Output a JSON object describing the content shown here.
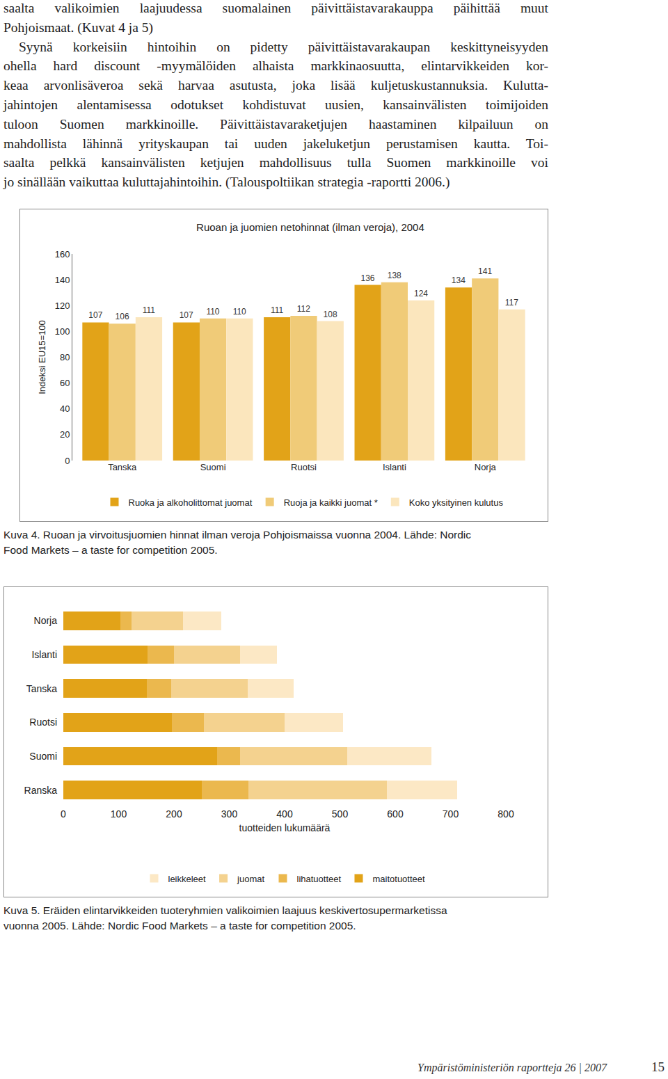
{
  "page": {
    "paragraphs": [
      [
        "saalta valikoimien laajuudessa suomalainen päivittäistavarakauppa päihittää muut",
        "Pohjoismaat. (Kuvat 4 ja 5)"
      ],
      [
        "Syynä korkeisiin hintoihin on pidetty päivittäistavarakaupan keskittyneisyyden",
        "ohella hard discount -myymälöiden alhaista markkinaosuutta, elintarvikkeiden kor-",
        "keaa arvonlisäveroa sekä harvaa asutusta, joka lisää kuljetuskustannuksia. Kulutta-",
        "jahintojen alentamisessa odotukset kohdistuvat uusien, kansainvälisten toimijoiden",
        "tuloon Suomen markkinoille. Päivittäistavaraketjujen haastaminen kilpailuun on",
        "mahdollista lähinnä yrityskaupan tai uuden jakeluketjun perustamisen kautta. Toi-",
        "saalta pelkkä kansainvälisten ketjujen mahdollisuus tulla Suomen markkinoille voi",
        "jo sinällään vaikuttaa kuluttajahintoihin. (Talouspoltiikan strategia -raportti 2006.)"
      ]
    ],
    "captions": [
      [
        "Kuva 4. Ruoan ja virvoitusjuomien hinnat ilman veroja Pohjoismaissa vuonna 2004. Lähde: Nordic",
        "Food Markets – a taste for competition 2005."
      ],
      [
        "Kuva 5. Eräiden elintarvikkeiden tuoteryhmien  valikoimien laajuus keskivertosupermarketissa",
        "vuonna 2005. Lähde: Nordic Food Markets – a taste for competition 2005."
      ]
    ],
    "footer": "Ympäristöministeriön raportteja 26 | 2007",
    "page_number": 15
  },
  "chart_data": [
    {
      "type": "bar",
      "title": "Ruoan ja juomien netohinnat (ilman veroja), 2004",
      "y_label": "Indeksi EU15=100",
      "categories": [
        "Tanska",
        "Suomi",
        "Ruotsi",
        "Islanti",
        "Norja"
      ],
      "series": [
        {
          "name": "Ruoka ja alkoholittomat juomat",
          "color": "#e2a318",
          "values": [
            107,
            107,
            111,
            136,
            134
          ]
        },
        {
          "name": "Ruoja ja kaikki juomat *",
          "color": "#f0cb78",
          "values": [
            106,
            110,
            112,
            138,
            141
          ]
        },
        {
          "name": "Koko yksityinen kulutus",
          "color": "#fbe6bd",
          "values": [
            111,
            110,
            108,
            124,
            117
          ]
        }
      ],
      "ylim": [
        0,
        160
      ],
      "yticks": [
        0,
        20,
        40,
        60,
        80,
        100,
        120,
        140,
        160
      ],
      "grid": false,
      "legend": "bottom",
      "data_labels": true
    },
    {
      "type": "bar",
      "orientation": "horizontal",
      "stacked": true,
      "x_label": "tuotteiden lukumäärä",
      "categories": [
        "Norja",
        "Islanti",
        "Tanska",
        "Ruotsi",
        "Suomi",
        "Ranska"
      ],
      "series": [
        {
          "name": "maitotuotteet",
          "color": "#e2a318",
          "values": [
            103,
            152,
            151,
            196,
            278,
            250
          ]
        },
        {
          "name": "lihatuotteet",
          "color": "#ebb84e",
          "values": [
            20,
            48,
            44,
            58,
            42,
            85
          ]
        },
        {
          "name": "juomat",
          "color": "#f4d28f",
          "values": [
            93,
            119,
            138,
            146,
            193,
            250
          ]
        },
        {
          "name": "leikkeleet",
          "color": "#fce8c5",
          "values": [
            70,
            67,
            83,
            106,
            153,
            127
          ]
        }
      ],
      "xlim": [
        0,
        800
      ],
      "xticks": [
        0,
        100,
        200,
        300,
        400,
        500,
        600,
        700,
        800
      ],
      "grid": false,
      "legend": "bottom",
      "data_labels": false
    }
  ]
}
